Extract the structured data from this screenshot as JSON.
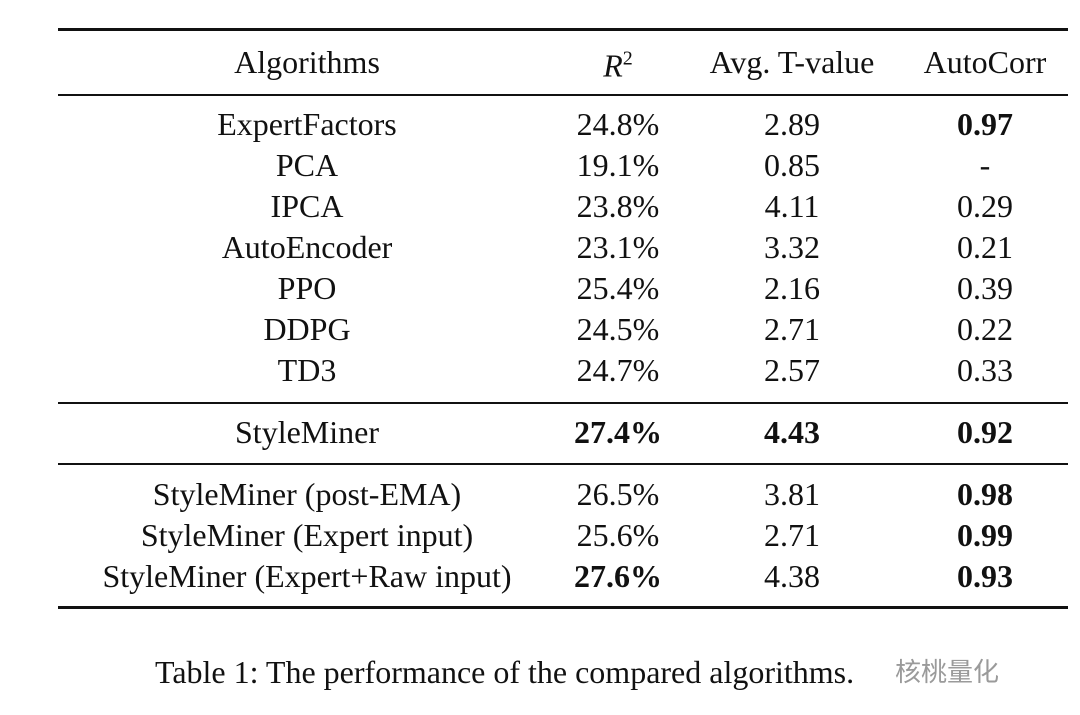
{
  "table": {
    "header": [
      "Algorithms",
      {
        "base": "R",
        "sup": "2"
      },
      "Avg. T-value",
      "AutoCorr"
    ],
    "sections": [
      {
        "rows": [
          {
            "cells": [
              "ExpertFactors",
              "24.8%",
              "2.89",
              "0.97"
            ],
            "bold": [
              false,
              false,
              false,
              true
            ]
          },
          {
            "cells": [
              "PCA",
              "19.1%",
              "0.85",
              "-"
            ],
            "bold": [
              false,
              false,
              false,
              false
            ]
          },
          {
            "cells": [
              "IPCA",
              "23.8%",
              "4.11",
              "0.29"
            ],
            "bold": [
              false,
              false,
              false,
              false
            ]
          },
          {
            "cells": [
              "AutoEncoder",
              "23.1%",
              "3.32",
              "0.21"
            ],
            "bold": [
              false,
              false,
              false,
              false
            ]
          },
          {
            "cells": [
              "PPO",
              "25.4%",
              "2.16",
              "0.39"
            ],
            "bold": [
              false,
              false,
              false,
              false
            ]
          },
          {
            "cells": [
              "DDPG",
              "24.5%",
              "2.71",
              "0.22"
            ],
            "bold": [
              false,
              false,
              false,
              false
            ]
          },
          {
            "cells": [
              "TD3",
              "24.7%",
              "2.57",
              "0.33"
            ],
            "bold": [
              false,
              false,
              false,
              false
            ]
          }
        ]
      },
      {
        "rows": [
          {
            "cells": [
              "StyleMiner",
              "27.4%",
              "4.43",
              "0.92"
            ],
            "bold": [
              false,
              true,
              true,
              true
            ]
          }
        ]
      },
      {
        "rows": [
          {
            "cells": [
              "StyleMiner (post-EMA)",
              "26.5%",
              "3.81",
              "0.98"
            ],
            "bold": [
              false,
              false,
              false,
              true
            ]
          },
          {
            "cells": [
              "StyleMiner (Expert input)",
              "25.6%",
              "2.71",
              "0.99"
            ],
            "bold": [
              false,
              false,
              false,
              true
            ]
          },
          {
            "cells": [
              "StyleMiner (Expert+Raw input)",
              "27.6%",
              "4.38",
              "0.93"
            ],
            "bold": [
              false,
              true,
              false,
              true
            ]
          }
        ]
      }
    ]
  },
  "caption": "Table 1: The performance of the compared algorithms.",
  "watermark": "核桃量化"
}
